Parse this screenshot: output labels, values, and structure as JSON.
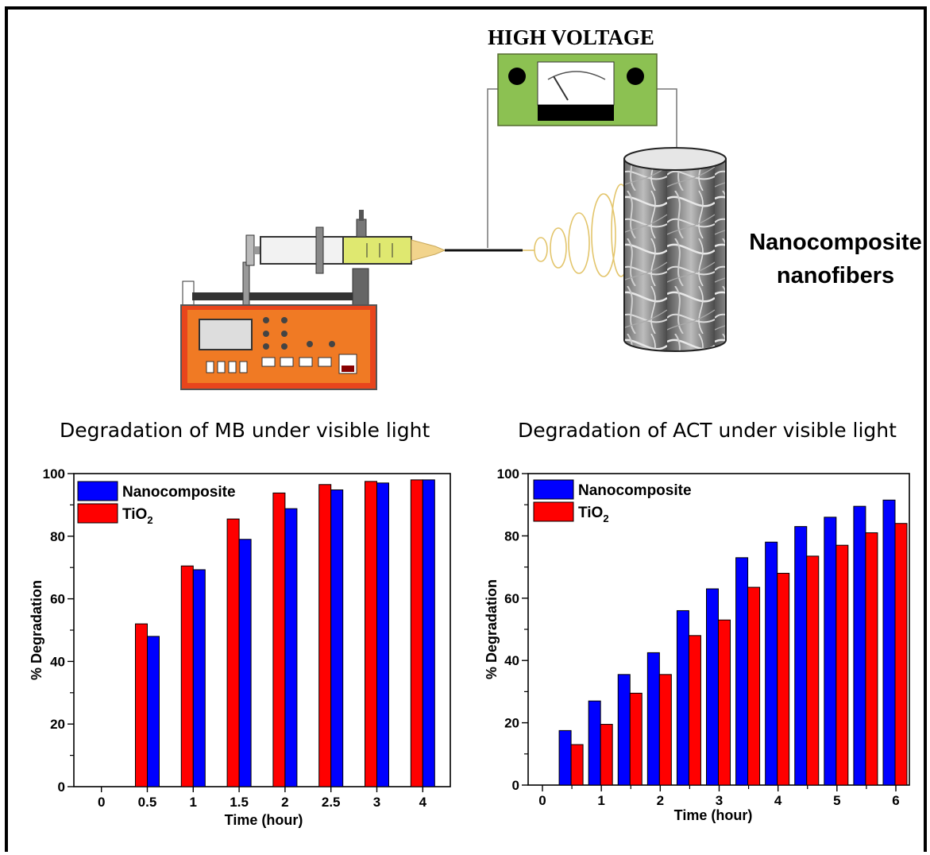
{
  "figure": {
    "power_supply_label": "HIGH VOLTAGE",
    "collector_label_line1": "Nanocomposite",
    "collector_label_line2": "nanofibers",
    "colors": {
      "nanocomposite": "#0000ff",
      "tio2": "#ff0000",
      "supply": "#8cc152",
      "pump": "#f07a24",
      "syringe_fluid": "#dfe870"
    }
  },
  "chart_data": [
    {
      "type": "bar",
      "title": "Degradation of MB under visible light",
      "xlabel": "Time (hour)",
      "ylabel": "% Degradation",
      "ylim": [
        0,
        100
      ],
      "yticks": [
        "0",
        "20",
        "40",
        "60",
        "80",
        "100"
      ],
      "categories": [
        "0",
        "0.5",
        "1",
        "1.5",
        "2",
        "2.5",
        "3",
        "4"
      ],
      "series": [
        {
          "name": "TiO2",
          "name_base": "TiO",
          "name_sub": "2",
          "color": "#ff0000",
          "values": [
            0,
            52,
            70.5,
            85.5,
            93.8,
            96.5,
            97.5,
            98
          ]
        },
        {
          "name": "Nanocomposite",
          "color": "#0000ff",
          "values": [
            0,
            48,
            69.3,
            79,
            88.8,
            94.8,
            97,
            98
          ]
        }
      ],
      "legend": [
        {
          "label": "Nanocomposite",
          "color": "#0000ff"
        },
        {
          "label": "TiO2",
          "base": "TiO",
          "sub": "2",
          "color": "#ff0000"
        }
      ],
      "legend_position": "top-left"
    },
    {
      "type": "bar",
      "title": "Degradation of ACT under visible light",
      "xlabel": "Time (hour)",
      "ylabel": "% Degradation",
      "ylim": [
        0,
        100
      ],
      "yticks": [
        "0",
        "20",
        "40",
        "60",
        "80",
        "100"
      ],
      "xticks": [
        "0",
        "1",
        "2",
        "3",
        "4",
        "5",
        "6"
      ],
      "x": [
        0.5,
        1,
        1.5,
        2,
        2.5,
        3,
        3.5,
        4,
        4.5,
        5,
        5.5,
        6
      ],
      "series": [
        {
          "name": "Nanocomposite",
          "color": "#0000ff",
          "values": [
            17.5,
            27,
            35.5,
            42.5,
            56,
            63,
            73,
            78,
            83,
            86,
            89.5,
            91.5
          ]
        },
        {
          "name": "TiO2",
          "name_base": "TiO",
          "name_sub": "2",
          "color": "#ff0000",
          "values": [
            13,
            19.5,
            29.5,
            35.5,
            48,
            53,
            63.5,
            68,
            73.5,
            77,
            81,
            84
          ]
        }
      ],
      "legend": [
        {
          "label": "Nanocomposite",
          "color": "#0000ff"
        },
        {
          "label": "TiO2",
          "base": "TiO",
          "sub": "2",
          "color": "#ff0000"
        }
      ],
      "legend_position": "top-left"
    }
  ]
}
